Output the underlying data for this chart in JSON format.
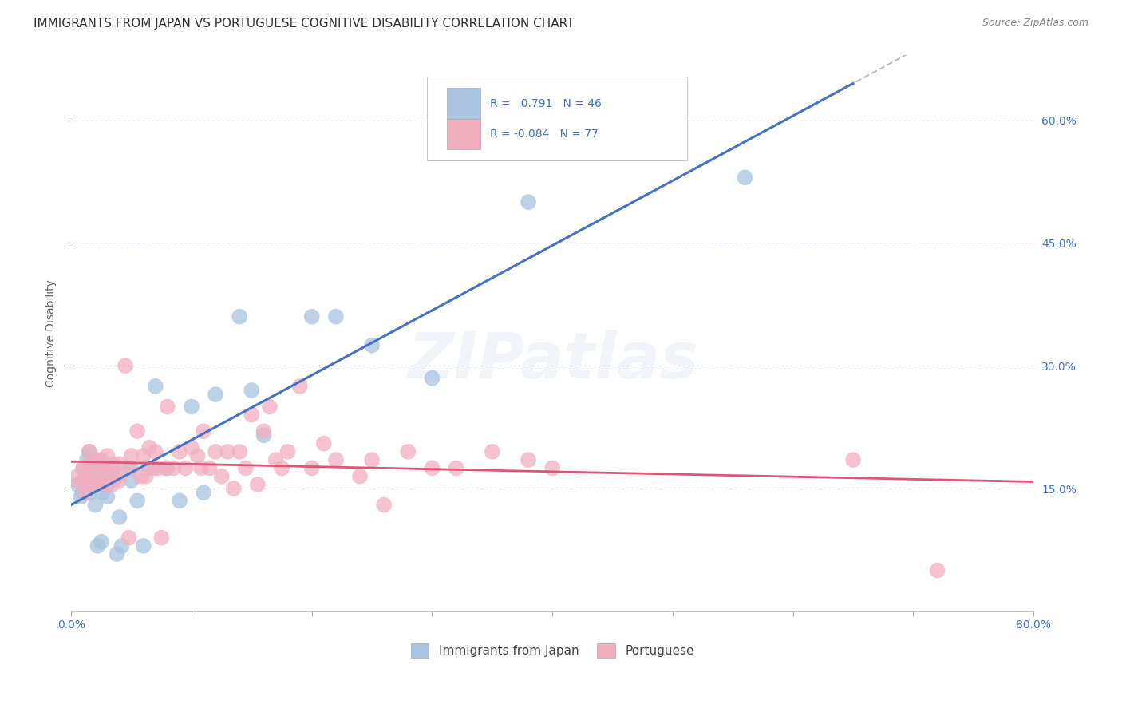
{
  "title": "IMMIGRANTS FROM JAPAN VS PORTUGUESE COGNITIVE DISABILITY CORRELATION CHART",
  "source": "Source: ZipAtlas.com",
  "ylabel": "Cognitive Disability",
  "xmin": 0.0,
  "xmax": 0.8,
  "ymin": 0.0,
  "ymax": 0.68,
  "yticks": [
    0.15,
    0.3,
    0.45,
    0.6
  ],
  "ytick_labels": [
    "15.0%",
    "30.0%",
    "45.0%",
    "60.0%"
  ],
  "xticks": [
    0.0,
    0.1,
    0.2,
    0.3,
    0.4,
    0.5,
    0.6,
    0.7,
    0.8
  ],
  "xtick_labels": [
    "0.0%",
    "",
    "",
    "",
    "",
    "",
    "",
    "",
    "80.0%"
  ],
  "japan_R": 0.791,
  "japan_N": 46,
  "portugal_R": -0.084,
  "portugal_N": 77,
  "japan_color": "#a8c4e0",
  "portugal_color": "#f2afc0",
  "japan_line_color": "#4472c4",
  "portugal_line_color": "#e05575",
  "legend_blue_label": "Immigrants from Japan",
  "legend_pink_label": "Portuguese",
  "japan_x": [
    0.005,
    0.008,
    0.01,
    0.01,
    0.01,
    0.012,
    0.013,
    0.015,
    0.015,
    0.016,
    0.018,
    0.019,
    0.02,
    0.02,
    0.022,
    0.023,
    0.025,
    0.026,
    0.028,
    0.03,
    0.03,
    0.032,
    0.035,
    0.038,
    0.04,
    0.042,
    0.048,
    0.05,
    0.055,
    0.06,
    0.065,
    0.07,
    0.08,
    0.09,
    0.1,
    0.11,
    0.12,
    0.14,
    0.15,
    0.16,
    0.2,
    0.22,
    0.25,
    0.3,
    0.38,
    0.56
  ],
  "japan_y": [
    0.155,
    0.14,
    0.175,
    0.16,
    0.145,
    0.165,
    0.185,
    0.195,
    0.16,
    0.145,
    0.155,
    0.175,
    0.165,
    0.13,
    0.08,
    0.155,
    0.085,
    0.145,
    0.175,
    0.14,
    0.155,
    0.17,
    0.175,
    0.07,
    0.115,
    0.08,
    0.175,
    0.16,
    0.135,
    0.08,
    0.175,
    0.275,
    0.175,
    0.135,
    0.25,
    0.145,
    0.265,
    0.36,
    0.27,
    0.215,
    0.36,
    0.36,
    0.325,
    0.285,
    0.5,
    0.53
  ],
  "portugal_x": [
    0.005,
    0.008,
    0.01,
    0.01,
    0.012,
    0.013,
    0.015,
    0.015,
    0.015,
    0.018,
    0.019,
    0.02,
    0.02,
    0.022,
    0.025,
    0.027,
    0.028,
    0.03,
    0.03,
    0.03,
    0.032,
    0.034,
    0.035,
    0.038,
    0.04,
    0.04,
    0.045,
    0.048,
    0.05,
    0.05,
    0.055,
    0.058,
    0.06,
    0.062,
    0.065,
    0.068,
    0.07,
    0.072,
    0.075,
    0.078,
    0.08,
    0.085,
    0.09,
    0.095,
    0.1,
    0.105,
    0.108,
    0.11,
    0.115,
    0.12,
    0.125,
    0.13,
    0.135,
    0.14,
    0.145,
    0.15,
    0.155,
    0.16,
    0.165,
    0.17,
    0.175,
    0.18,
    0.19,
    0.2,
    0.21,
    0.22,
    0.24,
    0.25,
    0.26,
    0.28,
    0.3,
    0.32,
    0.35,
    0.38,
    0.4,
    0.65,
    0.72
  ],
  "portugal_y": [
    0.165,
    0.155,
    0.175,
    0.16,
    0.145,
    0.165,
    0.195,
    0.18,
    0.16,
    0.175,
    0.155,
    0.18,
    0.16,
    0.185,
    0.185,
    0.165,
    0.155,
    0.19,
    0.175,
    0.155,
    0.175,
    0.155,
    0.18,
    0.165,
    0.18,
    0.16,
    0.3,
    0.09,
    0.19,
    0.175,
    0.22,
    0.165,
    0.19,
    0.165,
    0.2,
    0.175,
    0.195,
    0.175,
    0.09,
    0.175,
    0.25,
    0.175,
    0.195,
    0.175,
    0.2,
    0.19,
    0.175,
    0.22,
    0.175,
    0.195,
    0.165,
    0.195,
    0.15,
    0.195,
    0.175,
    0.24,
    0.155,
    0.22,
    0.25,
    0.185,
    0.175,
    0.195,
    0.275,
    0.175,
    0.205,
    0.185,
    0.165,
    0.185,
    0.13,
    0.195,
    0.175,
    0.175,
    0.195,
    0.185,
    0.175,
    0.185,
    0.05
  ],
  "background_color": "#ffffff",
  "grid_color": "#d0d8e8",
  "title_fontsize": 11,
  "axis_label_fontsize": 10,
  "tick_fontsize": 10,
  "right_axis_color": "#4472c4"
}
